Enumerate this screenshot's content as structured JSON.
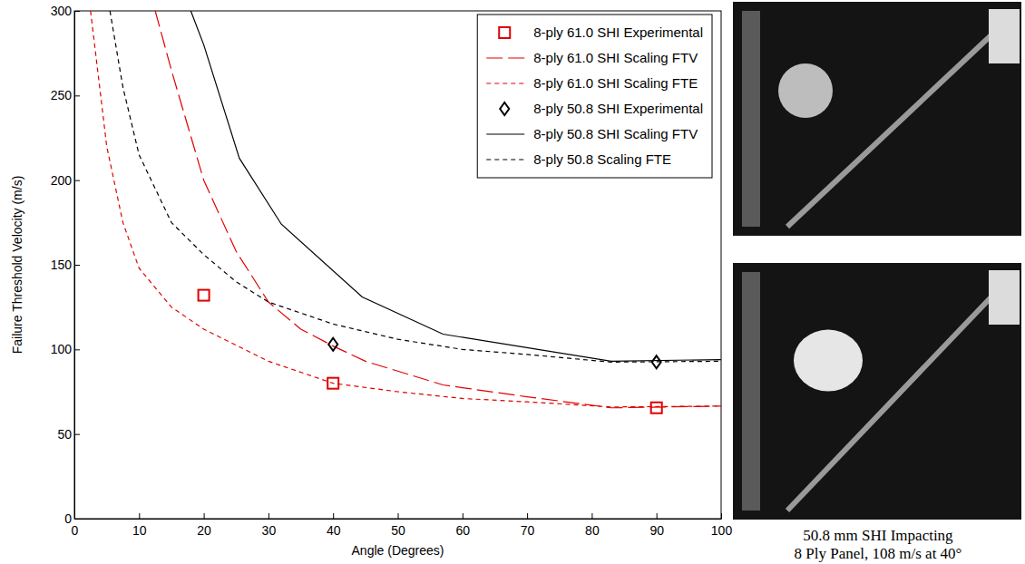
{
  "chart_data": {
    "type": "line",
    "x_label": "Angle (Degrees)",
    "y_label": "Failure Threshold Velocity (m/s)",
    "xlim": [
      0,
      100
    ],
    "ylim": [
      0,
      300
    ],
    "xticks": [
      0,
      10,
      20,
      30,
      40,
      50,
      60,
      70,
      80,
      90,
      100
    ],
    "yticks": [
      0,
      50,
      100,
      150,
      200,
      250,
      300
    ],
    "grid": false,
    "legend": "upper right",
    "series": [
      {
        "name": "8-ply 61.0 SHI Experimental",
        "type": "scatter",
        "color": "#e00000",
        "marker": "square",
        "x": [
          20,
          40,
          90
        ],
        "values": [
          132,
          80,
          65.5
        ]
      },
      {
        "name": "8-ply 61.0 SHI Scaling FTV",
        "type": "line",
        "color": "#e00000",
        "line_style": "longdash",
        "x": [
          12.5,
          15,
          20,
          25,
          30,
          35,
          40,
          45,
          57,
          70,
          83,
          100
        ],
        "values": [
          300,
          265,
          200,
          158,
          128,
          112,
          102,
          93,
          79,
          72,
          65.5,
          66.5
        ]
      },
      {
        "name": "8-ply 61.0 SHI Scaling FTE",
        "type": "line",
        "color": "#e00000",
        "line_style": "dashed",
        "x": [
          2.5,
          5,
          7.5,
          10,
          15,
          20,
          30,
          40,
          50,
          60,
          70,
          83,
          100
        ],
        "values": [
          300,
          220,
          175,
          148,
          125,
          112,
          93,
          80,
          75,
          71,
          69,
          66,
          66.5
        ]
      },
      {
        "name": "8-ply 50.8 SHI Experimental",
        "type": "scatter",
        "color": "#000000",
        "marker": "diamond",
        "x": [
          40,
          90
        ],
        "values": [
          103,
          92.5
        ]
      },
      {
        "name": "8-ply 50.8 SHI Scaling FTV",
        "type": "line",
        "color": "#000000",
        "line_style": "solid",
        "x": [
          18,
          20,
          25.5,
          32,
          44.5,
          57,
          83,
          100
        ],
        "values": [
          300,
          280,
          213,
          174,
          131,
          109,
          93,
          94
        ]
      },
      {
        "name": "8-ply 50.8 Scaling FTE",
        "type": "line",
        "color": "#000000",
        "line_style": "dashed",
        "x": [
          5.5,
          7.5,
          10,
          15,
          20,
          25,
          30,
          40,
          50,
          60,
          70,
          83,
          100
        ],
        "values": [
          300,
          255,
          215,
          175,
          156,
          140,
          128,
          115,
          106,
          100,
          97,
          92.5,
          93
        ]
      }
    ],
    "annotations": [
      "50.8 mm SHI Impacting",
      "8 Ply Panel, 108 m/s at 40°"
    ]
  }
}
